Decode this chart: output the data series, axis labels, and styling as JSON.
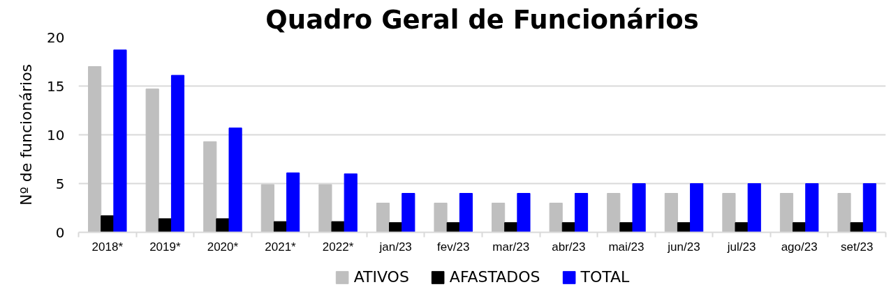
{
  "chart_data": {
    "type": "bar",
    "title": "Quadro Geral de Funcionários",
    "ylabel": "Nº de funcionários",
    "categories": [
      "2018*",
      "2019*",
      "2020*",
      "2021*",
      "2022*",
      "jan/23",
      "fev/23",
      "mar/23",
      "abr/23",
      "mai/23",
      "jun/23",
      "jul/23",
      "ago/23",
      "set/23"
    ],
    "series": [
      {
        "name": "ATIVOS",
        "color": "#bfbfbf",
        "values": [
          17,
          14.7,
          9.3,
          4.9,
          4.9,
          3,
          3,
          3,
          3,
          4,
          4,
          4,
          4,
          4
        ]
      },
      {
        "name": "AFASTADOS",
        "color": "#000000",
        "values": [
          1.7,
          1.4,
          1.4,
          1.1,
          1.1,
          1,
          1,
          1,
          1,
          1,
          1,
          1,
          1,
          1
        ]
      },
      {
        "name": "TOTAL",
        "color": "#0000ff",
        "values": [
          18.7,
          16.1,
          10.7,
          6.1,
          6.0,
          4,
          4,
          4,
          4,
          5,
          5,
          5,
          5,
          5
        ]
      }
    ],
    "ylim": [
      0,
      20
    ],
    "yticks": [
      0,
      5,
      10,
      15,
      20
    ],
    "grid": "y",
    "legend": "bottom"
  }
}
